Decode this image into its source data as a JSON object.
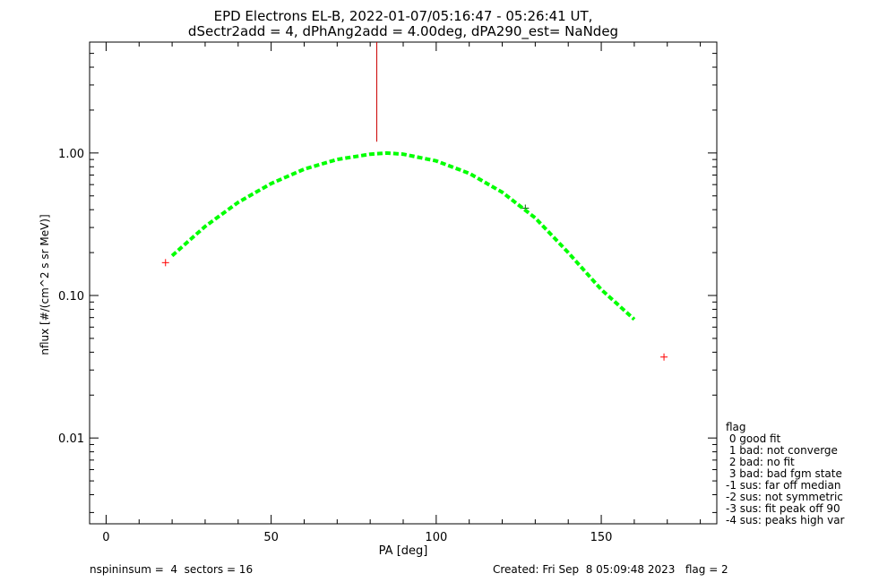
{
  "chart_data": {
    "type": "scatter",
    "title": "EPD Electrons EL-B, 2022-01-07/05:16:47 - 05:26:41 UT,",
    "subtitle": "dSectr2add = 4, dPhAng2add = 4.00deg, dPA290_est=   NaNdeg",
    "xlabel": "PA [deg]",
    "ylabel": "nflux [#/(cm^2 s sr MeV)]",
    "xlim": [
      -5,
      185
    ],
    "ylim": [
      0.0025,
      6.0
    ],
    "yscale": "log",
    "x_ticks": [
      0,
      50,
      100,
      150
    ],
    "x_tick_labels": [
      "0",
      "50",
      "100",
      "150"
    ],
    "y_ticks": [
      0.01,
      0.1,
      1.0
    ],
    "y_tick_labels": [
      "0.01",
      "0.10",
      "1.00"
    ],
    "grid": false,
    "series": [
      {
        "kind": "points",
        "color": "#ff0000",
        "marker": "+",
        "x": [
          18,
          169
        ],
        "y": [
          0.17,
          0.037
        ]
      },
      {
        "kind": "points",
        "color": "#006400",
        "marker": "+",
        "x": [
          127
        ],
        "y": [
          0.41
        ]
      },
      {
        "kind": "fit-curve",
        "color": "#00ff00",
        "style": "dashed",
        "x": [
          20,
          30,
          40,
          50,
          60,
          70,
          80,
          85,
          90,
          100,
          110,
          120,
          130,
          140,
          150,
          160
        ],
        "y": [
          0.19,
          0.305,
          0.45,
          0.61,
          0.77,
          0.9,
          0.98,
          1.0,
          0.98,
          0.88,
          0.72,
          0.53,
          0.35,
          0.2,
          0.11,
          0.068
        ]
      },
      {
        "kind": "peak-line",
        "color": "#cc0000",
        "x": [
          82,
          82
        ],
        "y": [
          1.2,
          6.0
        ]
      }
    ]
  },
  "legend": {
    "title": "flag",
    "items": [
      " 0 good fit",
      " 1 bad: not converge",
      " 2 bad: no fit",
      " 3 bad: bad fgm state",
      "-1 sus: far off median",
      "-2 sus: not symmetric",
      "-3 sus: fit peak off 90",
      "-4 sus: peaks high var"
    ]
  },
  "footer": {
    "left": "nspininsum =  4  sectors = 16",
    "right": "Created: Fri Sep  8 05:09:48 2023   flag = 2"
  }
}
